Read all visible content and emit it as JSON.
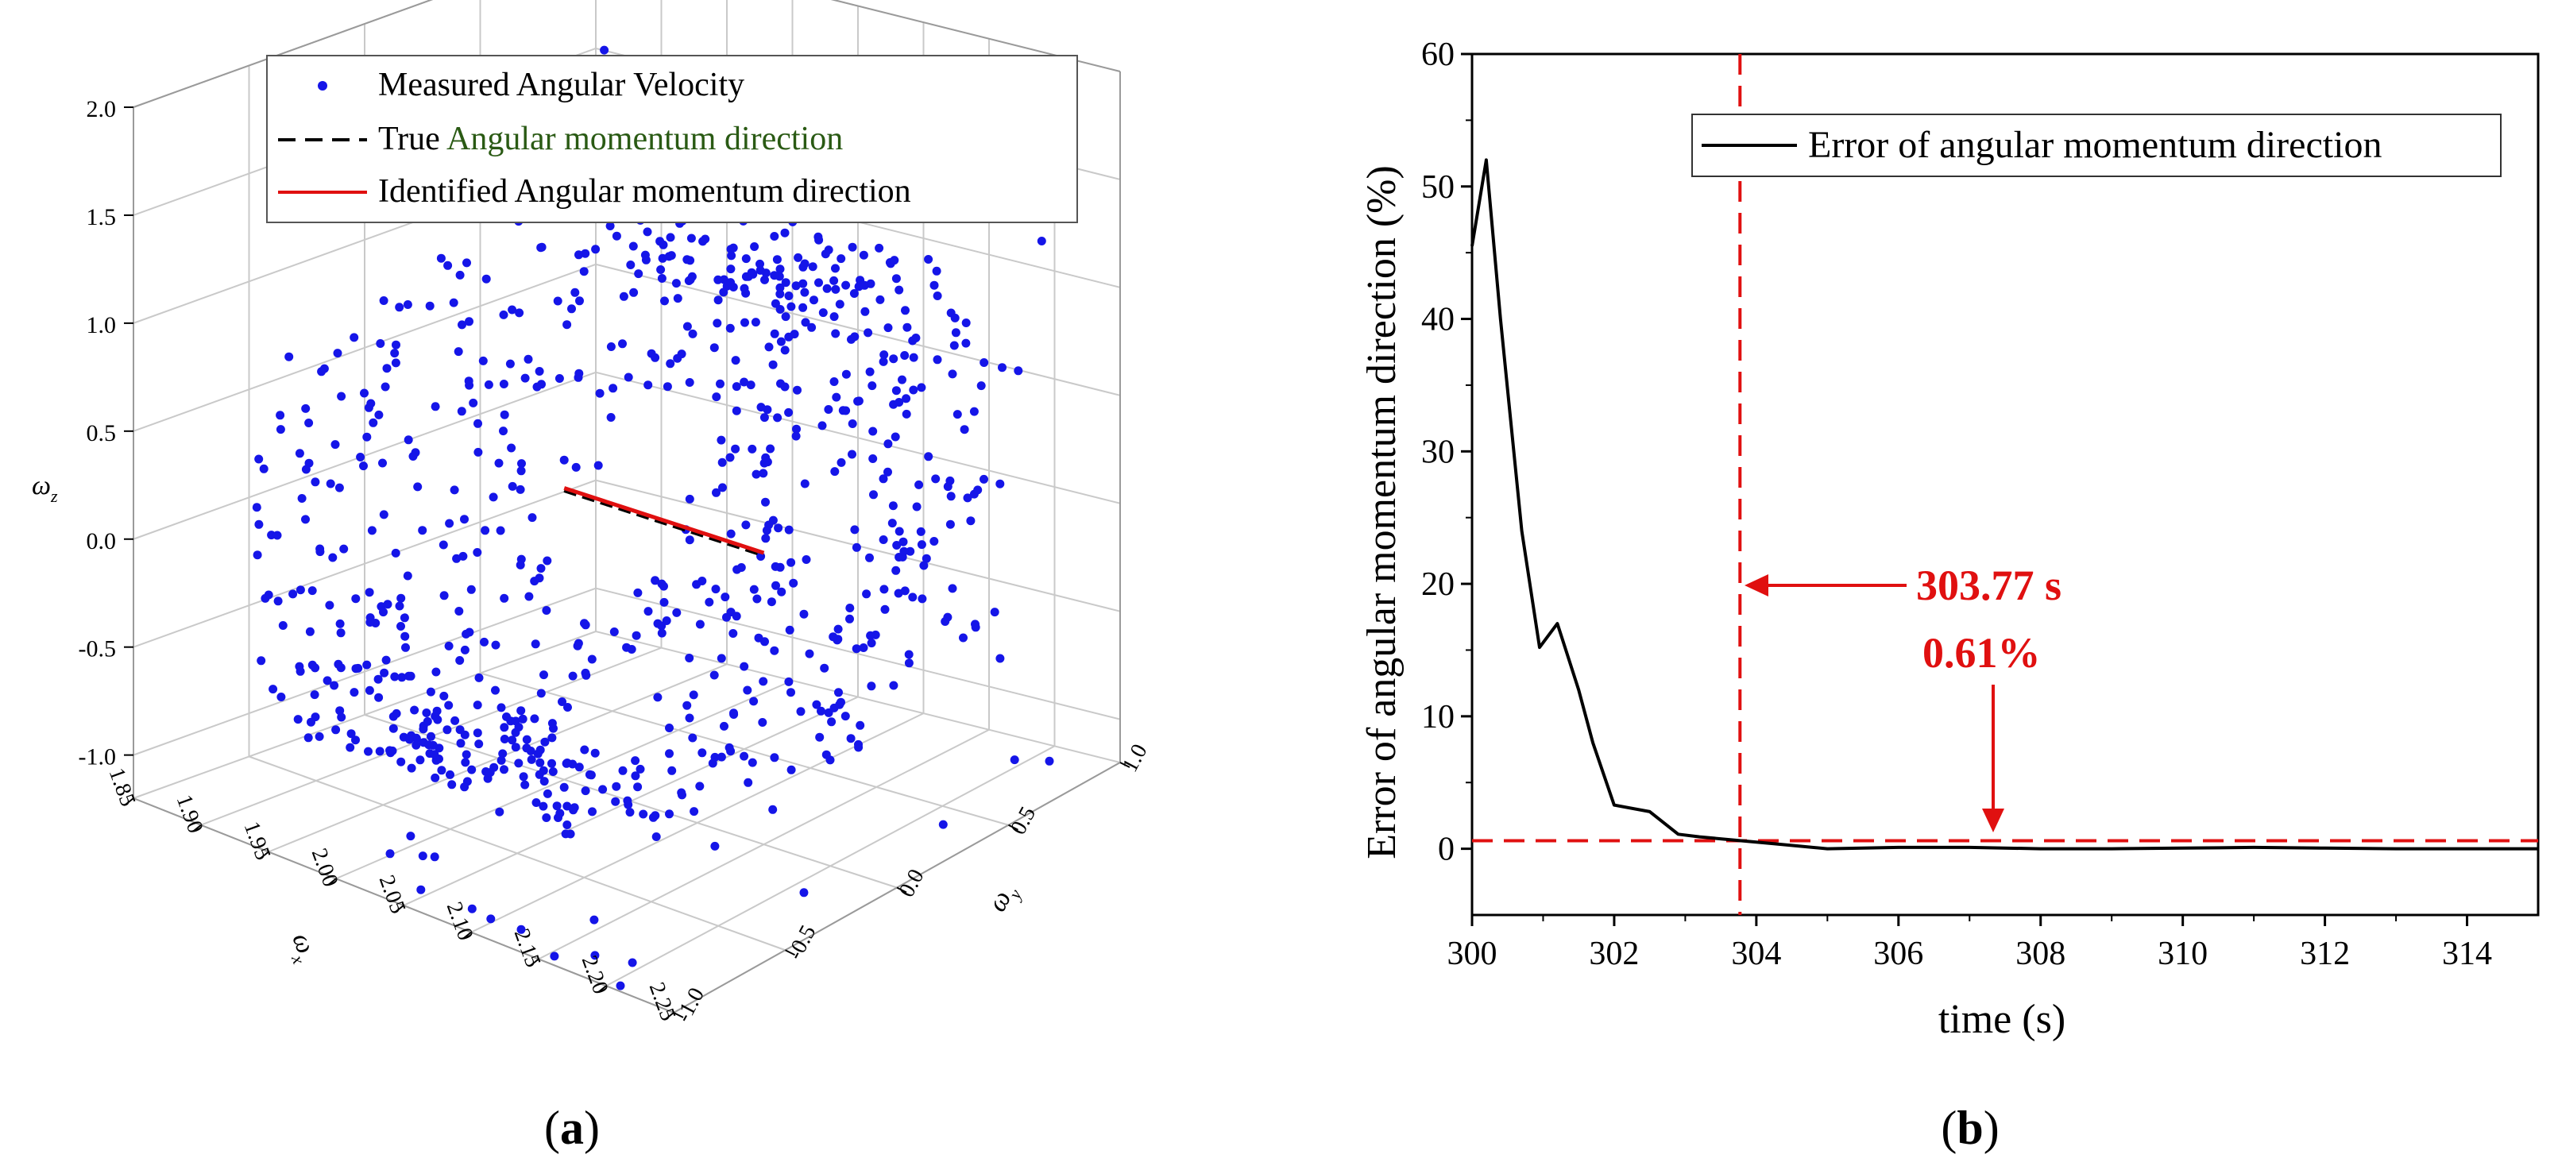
{
  "chart_data": [
    {
      "type": "scatter",
      "panel_label": "(a)",
      "panel_letter": "a",
      "zlabel": "ω",
      "zlabel_sub": "z",
      "ylabel": "ω",
      "ylabel_sub": "y",
      "xlabel": "ω",
      "xlabel_sub": "x",
      "x_ticks": [
        "1.85",
        "1.90",
        "1.95",
        "2.00",
        "2.05",
        "2.10",
        "2.15",
        "2.20",
        "2.25"
      ],
      "y_ticks": [
        "1.0",
        "0.5",
        "0.0",
        "-0.5",
        "-1.0"
      ],
      "z_ticks": [
        "2.0",
        "1.5",
        "1.0",
        "0.5",
        "0.0",
        "-0.5",
        "-1.0"
      ],
      "xlim": [
        1.85,
        2.25
      ],
      "ylim": [
        -1.0,
        1.0
      ],
      "zlim": [
        -1.2,
        2.0
      ],
      "legend": [
        {
          "label": "Measured Angular Velocity",
          "style": "dot",
          "color": "#1515e8"
        },
        {
          "label": "True ",
          "label_green": "Angular momentum direction",
          "style": "dashed",
          "color": "#000000"
        },
        {
          "label": "Identified Angular momentum direction",
          "style": "solid",
          "color": "#e01010"
        }
      ],
      "series": [
        {
          "name": "Measured Angular Velocity",
          "description_ring": "points distributed on a tilted ring of radius ~1.1 around (2.05, 0, 0.15)"
        },
        {
          "name": "True Angular momentum direction",
          "line": [
            [
              2.0,
              0.0,
              0.15
            ],
            [
              2.15,
              0.0,
              0.15
            ]
          ]
        },
        {
          "name": "Identified Angular momentum direction",
          "line": [
            [
              2.0,
              0.0,
              0.15
            ],
            [
              2.15,
              0.0,
              0.15
            ]
          ]
        }
      ]
    },
    {
      "type": "line",
      "panel_label": "(b)",
      "panel_letter": "b",
      "xlabel": "time (s)",
      "ylabel": "Error of  angular momentum direction (%)",
      "xlim": [
        300,
        315
      ],
      "ylim": [
        -5,
        60
      ],
      "x_ticks": [
        300,
        302,
        304,
        306,
        308,
        310,
        312,
        314
      ],
      "y_ticks": [
        0,
        10,
        20,
        30,
        40,
        50,
        60
      ],
      "legend": [
        "Error of  angular momentum direction"
      ],
      "series": [
        {
          "name": "Error of  angular momentum direction",
          "x": [
            300.0,
            300.2,
            300.4,
            300.7,
            300.95,
            301.2,
            301.5,
            301.7,
            302.0,
            302.5,
            302.9,
            303.2,
            303.77,
            304.2,
            305.0,
            306.0,
            307.0,
            308.0,
            309.0,
            310.0,
            311.0,
            312.0,
            313.0,
            314.0,
            315.0
          ],
          "values": [
            45.5,
            52.0,
            40.0,
            24.0,
            15.2,
            17.0,
            12.0,
            8.0,
            3.3,
            2.8,
            1.1,
            0.9,
            0.61,
            0.4,
            0.0,
            0.1,
            0.1,
            0.0,
            0.0,
            0.05,
            0.1,
            0.05,
            0.0,
            0.0,
            0.0
          ]
        }
      ],
      "annotations": {
        "time_text": "303.77 s",
        "pct_text": "0.61%",
        "vline_x": 303.77,
        "hline_y": 0.61,
        "color": "#e01010"
      }
    }
  ]
}
